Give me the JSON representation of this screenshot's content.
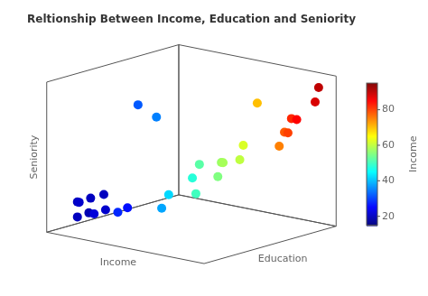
{
  "chart_data": {
    "type": "scatter3d",
    "title": "Reltionship Between Income, Education and Seniority",
    "xlabel": "Income",
    "ylabel": "Education",
    "zlabel": "Seniority",
    "x": [
      20,
      20,
      21,
      19,
      20,
      22,
      21,
      20,
      28,
      26,
      32,
      35,
      38,
      42,
      50,
      48,
      52,
      55,
      57,
      58,
      60,
      62,
      70,
      75,
      78,
      80,
      82,
      85,
      88,
      90
    ],
    "y": [
      1,
      1,
      1,
      2,
      2,
      2,
      3,
      3,
      3,
      4,
      4,
      5,
      5,
      5,
      6,
      6,
      6,
      7,
      7,
      7,
      8,
      8,
      8,
      9,
      9,
      9,
      9,
      9,
      10,
      10
    ],
    "z": [
      1,
      2,
      2,
      1,
      2,
      1,
      1,
      2,
      1,
      1,
      8,
      7,
      1,
      2,
      2,
      3,
      4,
      3,
      4,
      4,
      4,
      5,
      8,
      5,
      6,
      6,
      7,
      7,
      8,
      9
    ],
    "xlim": [
      10,
      100
    ],
    "ylim": [
      0,
      10
    ],
    "zlim": [
      0,
      10
    ],
    "tick_labels": false,
    "grid": false,
    "color": "jet",
    "color_label": "Income",
    "color_range": [
      15,
      95
    ],
    "color_ticks": [
      20,
      40,
      60,
      80
    ]
  }
}
